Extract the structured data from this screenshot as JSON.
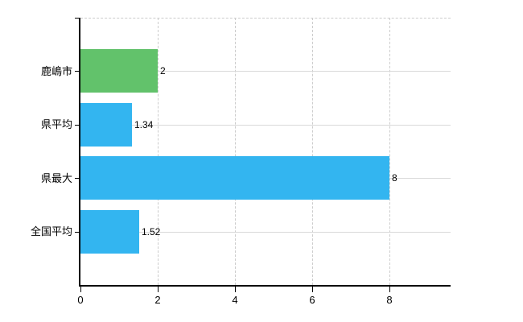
{
  "chart_data": {
    "type": "bar",
    "orientation": "horizontal",
    "title": "",
    "xlabel": "",
    "ylabel": "",
    "categories": [
      "鹿嶋市",
      "県平均",
      "県最大",
      "全国平均"
    ],
    "values": [
      2,
      1.34,
      8,
      1.52
    ],
    "value_labels": [
      "2",
      "1.34",
      "8",
      "1.52"
    ],
    "bar_colors": [
      "#62c26b",
      "#33b5f0",
      "#33b5f0",
      "#33b5f0"
    ],
    "x_ticks": [
      0,
      2,
      4,
      6,
      8
    ],
    "x_tick_labels": [
      "0",
      "2",
      "4",
      "6",
      "8"
    ],
    "xlim": [
      0,
      9.58
    ],
    "grid": true,
    "legend": false
  },
  "colors": {
    "background": "#ffffff",
    "bar_blue": "#33b5f0",
    "bar_green": "#62c26b",
    "grid_solid": "#d9d9d9",
    "grid_dashed": "#cccccc",
    "axis": "#000000",
    "text": "#000000"
  }
}
